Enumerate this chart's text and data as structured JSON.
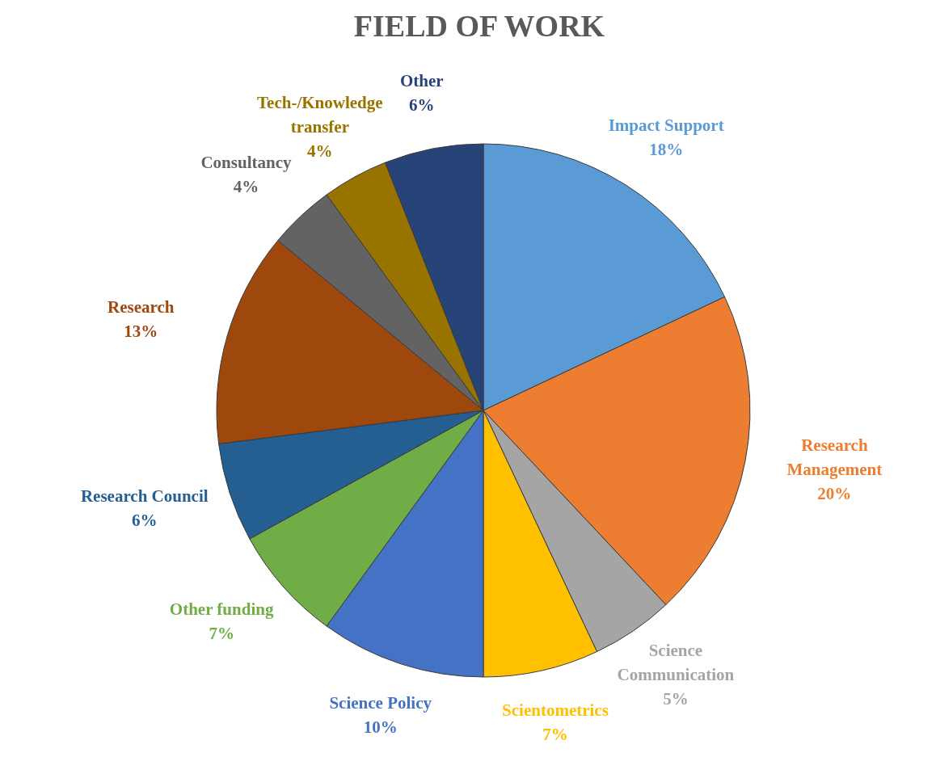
{
  "chart_data": {
    "type": "pie",
    "title": "FIELD OF WORK",
    "categories": [
      "Impact Support",
      "Research Management",
      "Science Communication",
      "Scientometrics",
      "Science Policy",
      "Other funding",
      "Research Council",
      "Research",
      "Consultancy",
      "Tech-/Knowledge transfer",
      "Other"
    ],
    "values": [
      18,
      20,
      5,
      7,
      10,
      7,
      6,
      13,
      4,
      4,
      6
    ],
    "colors": [
      "#5b9bd5",
      "#ed7d31",
      "#a5a5a5",
      "#ffc000",
      "#4472c4",
      "#70ad47",
      "#255e91",
      "#9e480e",
      "#636363",
      "#997300",
      "#264478"
    ],
    "value_labels": [
      "18%",
      "20%",
      "5%",
      "7%",
      "10%",
      "7%",
      "6%",
      "13%",
      "4%",
      "4%",
      "6%"
    ],
    "legend": false
  }
}
